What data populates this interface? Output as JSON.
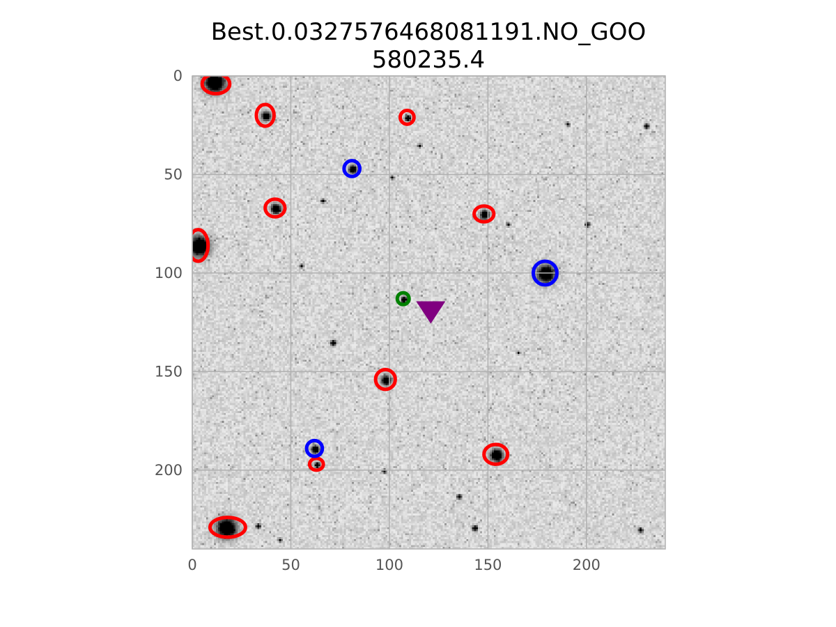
{
  "chart_data": {
    "type": "scatter",
    "title_lines": [
      "Best.0.0327576468081191.NO_GOO",
      "580235.4"
    ],
    "xlabel": "",
    "ylabel": "",
    "xlim": [
      0,
      240
    ],
    "ylim": [
      240,
      0
    ],
    "y_inverted": true,
    "x_ticks": [
      0,
      50,
      100,
      150,
      200
    ],
    "y_ticks": [
      0,
      50,
      100,
      150,
      200
    ],
    "grid": true,
    "legend": "none",
    "background": "grayscale astronomical image (dark stars on light noisy background)",
    "series": [
      {
        "marker": "ellipse",
        "color": "#ff0000",
        "points": [
          {
            "x": 12,
            "y": 4,
            "rx": 7,
            "ry": 5
          },
          {
            "x": 37,
            "y": 20,
            "rx": 4.5,
            "ry": 5.5
          },
          {
            "x": 109,
            "y": 21,
            "rx": 3.5,
            "ry": 3.5
          },
          {
            "x": 42,
            "y": 67,
            "rx": 5,
            "ry": 4.5
          },
          {
            "x": 148,
            "y": 70,
            "rx": 5,
            "ry": 4
          },
          {
            "x": 3,
            "y": 86,
            "rx": 5,
            "ry": 8
          },
          {
            "x": 98,
            "y": 154,
            "rx": 5,
            "ry": 5
          },
          {
            "x": 154,
            "y": 192,
            "rx": 6,
            "ry": 5
          },
          {
            "x": 63,
            "y": 197,
            "rx": 3.5,
            "ry": 3
          },
          {
            "x": 18,
            "y": 229,
            "rx": 9,
            "ry": 5
          }
        ]
      },
      {
        "marker": "circle",
        "color": "#0000ff",
        "points": [
          {
            "x": 81,
            "y": 47,
            "r": 4
          },
          {
            "x": 179,
            "y": 100,
            "r": 6
          },
          {
            "x": 62,
            "y": 189,
            "r": 4
          }
        ]
      },
      {
        "marker": "circle",
        "color": "#008000",
        "points": [
          {
            "x": 107,
            "y": 113,
            "r": 3
          }
        ]
      },
      {
        "marker": "triangle-down",
        "color": "#800080",
        "points": [
          {
            "x": 121,
            "y": 120
          }
        ]
      }
    ],
    "star_sources": [
      {
        "x": 11,
        "y": 3,
        "s": 4.5
      },
      {
        "x": 37,
        "y": 20,
        "s": 2
      },
      {
        "x": 109,
        "y": 21,
        "s": 1.3
      },
      {
        "x": 81,
        "y": 47,
        "s": 1.8
      },
      {
        "x": 42,
        "y": 67,
        "s": 2.2
      },
      {
        "x": 148,
        "y": 70,
        "s": 2
      },
      {
        "x": 3,
        "y": 86,
        "s": 4.5
      },
      {
        "x": 179,
        "y": 100,
        "s": 4
      },
      {
        "x": 107,
        "y": 113,
        "s": 1.3
      },
      {
        "x": 98,
        "y": 154,
        "s": 2.2
      },
      {
        "x": 62,
        "y": 189,
        "s": 1.8
      },
      {
        "x": 154,
        "y": 192,
        "s": 2.8
      },
      {
        "x": 63,
        "y": 197,
        "s": 1.2
      },
      {
        "x": 17,
        "y": 229,
        "s": 4.5
      },
      {
        "x": 71,
        "y": 135,
        "s": 1.2
      },
      {
        "x": 160,
        "y": 75,
        "s": 0.8
      },
      {
        "x": 200,
        "y": 75,
        "s": 1
      },
      {
        "x": 227,
        "y": 230,
        "s": 1
      },
      {
        "x": 143,
        "y": 229,
        "s": 1.2
      },
      {
        "x": 135,
        "y": 213,
        "s": 1
      },
      {
        "x": 33,
        "y": 228,
        "s": 1
      },
      {
        "x": 230,
        "y": 25,
        "s": 1
      },
      {
        "x": 190,
        "y": 24,
        "s": 0.8
      },
      {
        "x": 66,
        "y": 63,
        "s": 0.8
      },
      {
        "x": 101,
        "y": 51,
        "s": 0.8
      },
      {
        "x": 55,
        "y": 96,
        "s": 0.8
      },
      {
        "x": 115,
        "y": 35,
        "s": 0.8
      },
      {
        "x": 97,
        "y": 200,
        "s": 0.8
      },
      {
        "x": 44,
        "y": 235,
        "s": 0.8
      },
      {
        "x": 165,
        "y": 140,
        "s": 0.7
      }
    ]
  }
}
